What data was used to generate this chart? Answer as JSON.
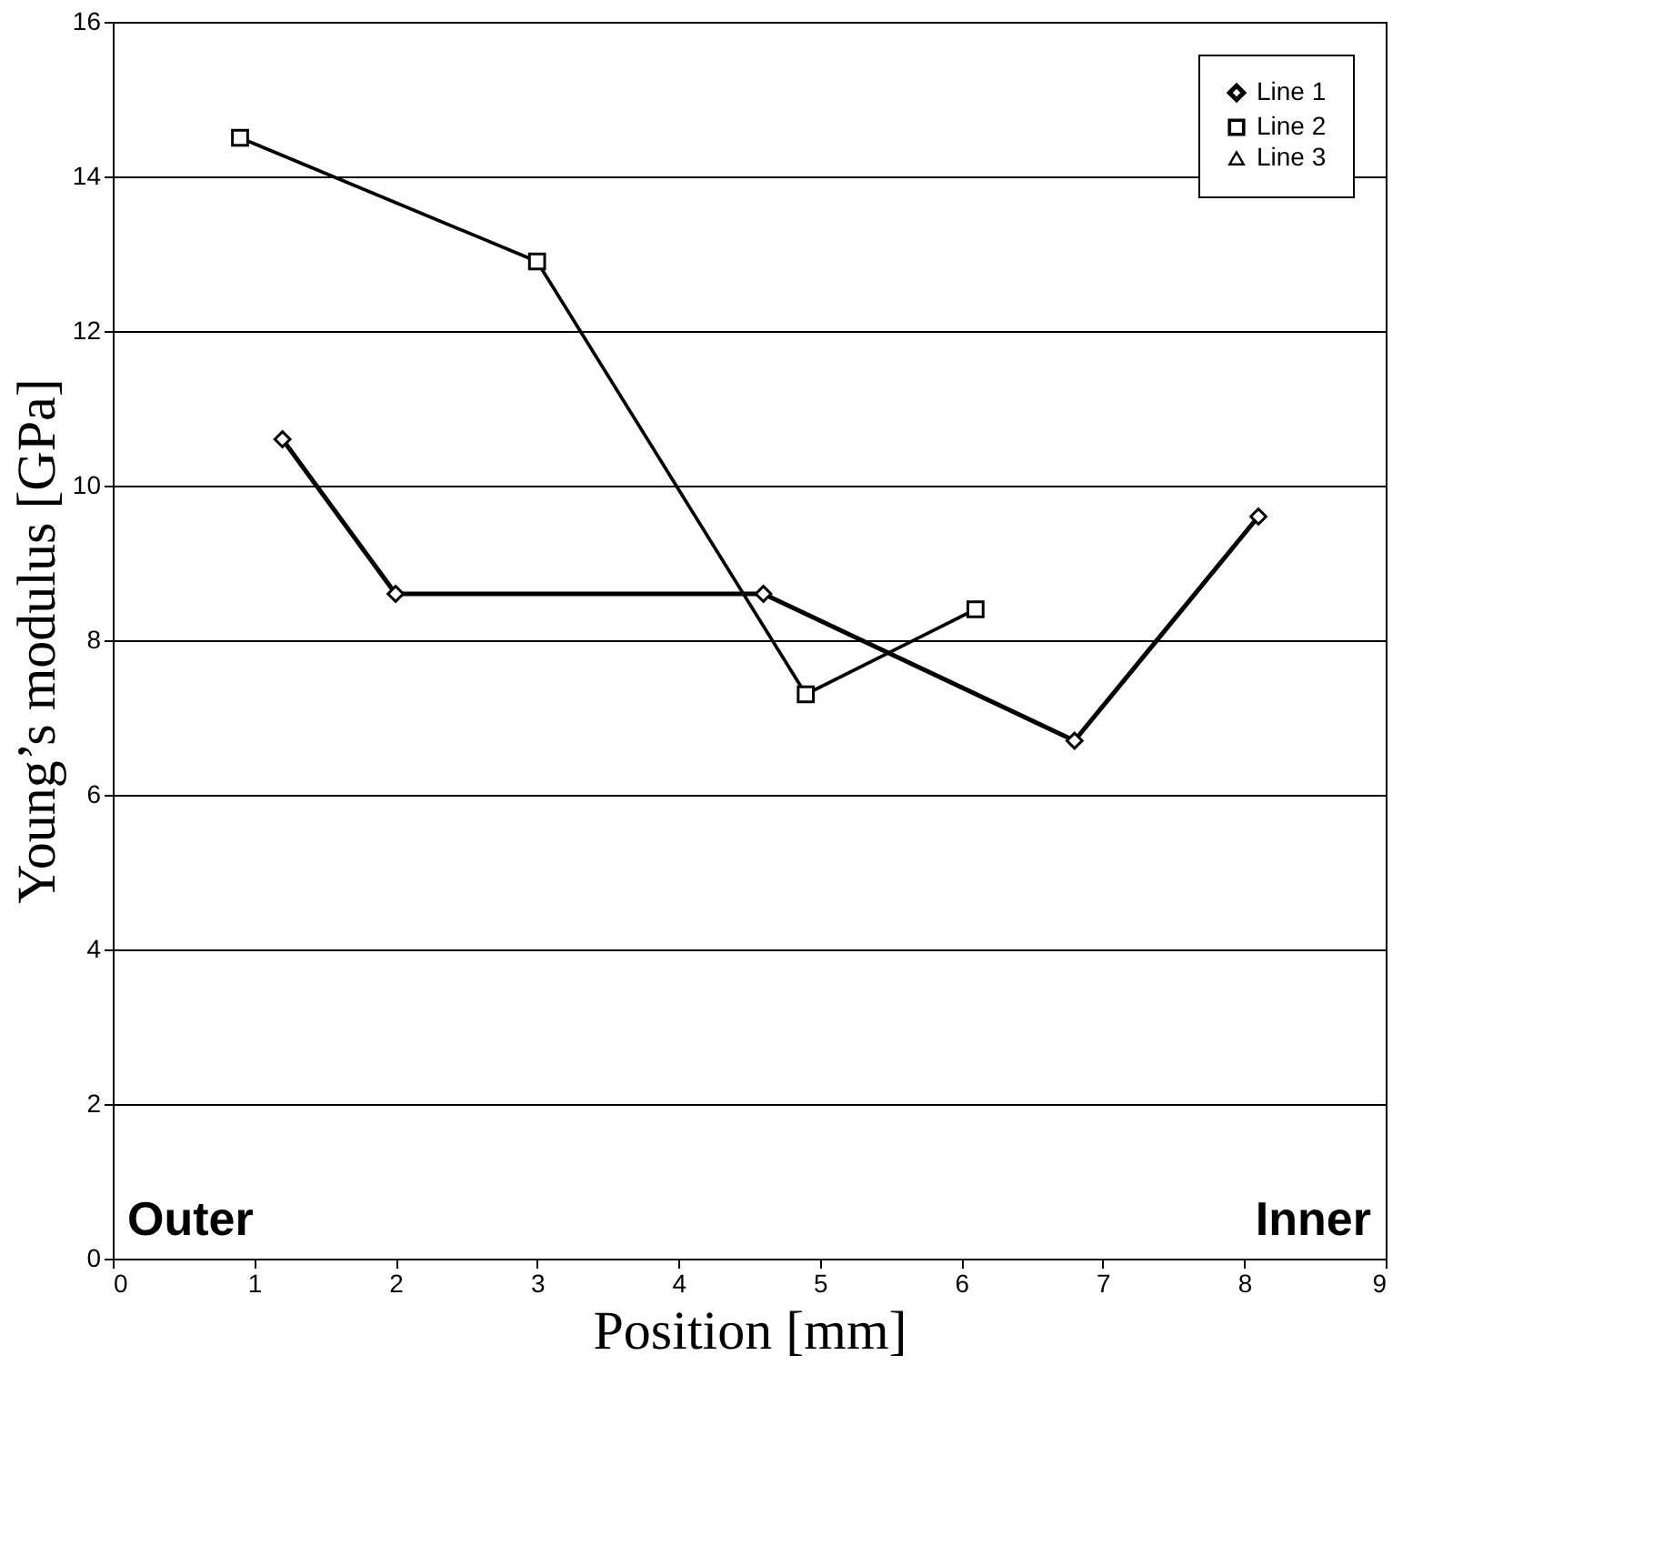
{
  "chart_data": {
    "type": "line",
    "xlabel": "Position [mm]",
    "ylabel": "Young’s modulus [GPa]",
    "xlim": [
      0,
      9
    ],
    "xticks": [
      0,
      1,
      2,
      3,
      4,
      5,
      6,
      7,
      8,
      9
    ],
    "ylim": [
      0,
      16
    ],
    "yticks": [
      0,
      2,
      4,
      6,
      8,
      10,
      12,
      14,
      16
    ],
    "grid": "y",
    "legend": "top right",
    "annotations": [
      "Outer",
      "Inner"
    ],
    "series": [
      {
        "name": "Line 1",
        "color": "#000000",
        "marker": "diamond",
        "x": [
          1.2,
          2.0,
          4.6,
          6.8,
          8.1
        ],
        "values": [
          10.6,
          8.6,
          8.6,
          6.7,
          9.6
        ]
      },
      {
        "name": "Line 2",
        "color": "#000000",
        "marker": "square",
        "x": [
          0.9,
          3.0,
          4.9,
          6.1
        ],
        "values": [
          14.5,
          12.9,
          7.3,
          8.4
        ]
      },
      {
        "name": "Line 3",
        "color": "#000000",
        "marker": "triangle"
      }
    ]
  }
}
